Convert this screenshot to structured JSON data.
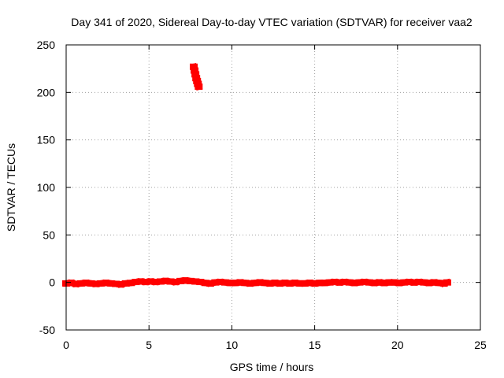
{
  "chart_data": {
    "type": "scatter",
    "title": "Day 341 of 2020, Sidereal Day-to-day VTEC variation (SDTVAR) for receiver vaa2",
    "xlabel": "GPS time / hours",
    "ylabel": "SDTVAR / TECUs",
    "xlim": [
      0,
      25
    ],
    "ylim": [
      -50,
      250
    ],
    "xticks": [
      0,
      5,
      10,
      15,
      20,
      25
    ],
    "yticks": [
      -50,
      0,
      50,
      100,
      150,
      200,
      250
    ],
    "grid": true,
    "series_color": "#ff0000",
    "series": [
      {
        "name": "SDTVAR",
        "x": [
          0.0,
          0.3,
          0.6,
          0.9,
          1.2,
          1.5,
          1.8,
          2.1,
          2.4,
          2.7,
          3.0,
          3.3,
          3.6,
          3.9,
          4.2,
          4.5,
          4.8,
          5.1,
          5.4,
          5.7,
          6.0,
          6.3,
          6.6,
          6.9,
          7.2,
          7.5,
          7.8,
          8.1,
          8.4,
          8.7,
          9.0,
          9.3,
          9.6,
          9.9,
          10.2,
          10.5,
          10.8,
          11.1,
          11.4,
          11.7,
          12.0,
          12.3,
          12.6,
          12.9,
          13.2,
          13.5,
          13.8,
          14.1,
          14.4,
          14.7,
          15.0,
          15.3,
          15.6,
          15.9,
          16.2,
          16.5,
          16.8,
          17.1,
          17.4,
          17.7,
          18.0,
          18.3,
          18.6,
          18.9,
          19.2,
          19.5,
          19.8,
          20.1,
          20.4,
          20.7,
          21.0,
          21.3,
          21.6,
          21.9,
          22.2,
          22.5,
          22.8,
          23.0,
          7.7,
          7.75,
          7.8,
          7.85,
          7.9,
          7.95,
          8.0
        ],
        "y": [
          -1,
          -0.5,
          -1.5,
          -1,
          -0.5,
          -1,
          -1.5,
          -1,
          -0.5,
          -1,
          -1.5,
          -2,
          -1,
          -0.5,
          0.5,
          1,
          0.5,
          1,
          0.5,
          1,
          1.5,
          1,
          0.5,
          1.5,
          2,
          1.5,
          1,
          0.5,
          -0.5,
          -1,
          0,
          0.5,
          0,
          -0.5,
          -0.5,
          0,
          -0.5,
          -1,
          -0.5,
          0,
          -0.5,
          -1,
          -0.5,
          -1,
          -0.5,
          -1,
          -0.5,
          -1,
          -1,
          -0.5,
          -1,
          -0.5,
          -0.5,
          0,
          0.5,
          0,
          0.5,
          0,
          -0.5,
          0,
          0.5,
          0,
          -0.5,
          0,
          -0.5,
          0,
          0,
          -0.5,
          0,
          0.5,
          0,
          0.5,
          0,
          -0.5,
          0,
          -0.5,
          -1,
          0,
          227,
          223,
          219,
          215,
          212,
          209,
          206
        ]
      }
    ]
  }
}
